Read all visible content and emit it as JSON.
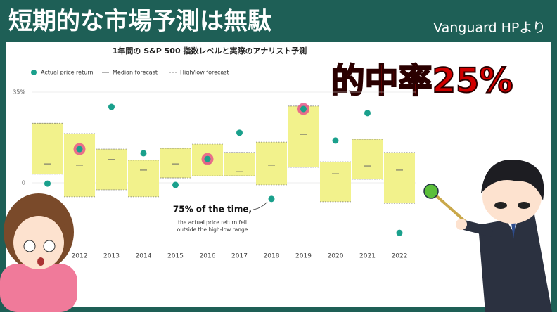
{
  "header": {
    "title": "短期的な市場予測は無駄",
    "source": "Vanguard HPより",
    "headline": "的中率25%"
  },
  "chart_data": {
    "type": "forecast-range",
    "title": "1年間の S&P 500 指数レベルと実際のアナリスト予測",
    "categories": [
      null,
      "2012",
      "2013",
      "2014",
      "2015",
      "2016",
      "2017",
      "2018",
      "2019",
      "2020",
      "2021",
      "2022"
    ],
    "series": [
      {
        "name": "Actual price return",
        "color": "#1aa08c",
        "values": [
          -0.3,
          13,
          29.3,
          11.4,
          -0.8,
          9.2,
          19.3,
          -6.2,
          28.5,
          16.3,
          26.9,
          -19.3
        ]
      },
      {
        "name": "Median forecast",
        "color": "#666666",
        "values": [
          7.3,
          6.8,
          9,
          4.9,
          7.3,
          7.6,
          4.3,
          6.8,
          18.7,
          3.5,
          6.5,
          4.9
        ]
      },
      {
        "name": "High/low forecast",
        "color": "#f2f28c",
        "high": [
          23,
          19,
          13,
          8.7,
          13.3,
          14.9,
          11.7,
          15.7,
          29.6,
          8.1,
          16.8,
          11.7
        ],
        "low": [
          3.3,
          -5.4,
          -2.7,
          -5.4,
          1.9,
          2.7,
          2.7,
          -0.8,
          6,
          -7.3,
          1.4,
          -7.9
        ]
      }
    ],
    "highlight_points": [
      1,
      5,
      8
    ],
    "highlight_color": "#e8588a",
    "ylim": [
      -25,
      35
    ],
    "yticks": [
      {
        "value": 35,
        "label": "35%"
      },
      0
    ],
    "grid": true,
    "annotation": {
      "title": "75% of the time,",
      "lines": [
        "the actual price return fell",
        "outside the high-low range"
      ]
    }
  }
}
